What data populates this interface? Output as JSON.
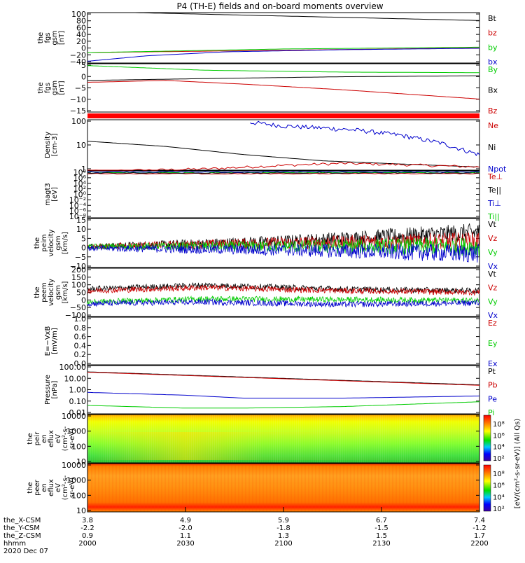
{
  "title": "P4 (TH-E) fields and on-board moments overview",
  "time_axis": {
    "rows": [
      {
        "label": "the_X-CSM",
        "values": [
          "3.8",
          "4.9",
          "5.9",
          "6.7",
          "7.4"
        ]
      },
      {
        "label": "the_Y-CSM",
        "values": [
          "-2.2",
          "-2.0",
          "-1.8",
          "-1.5",
          "-1.2"
        ]
      },
      {
        "label": "the_Z-CSM",
        "values": [
          "0.9",
          "1.1",
          "1.3",
          "1.5",
          "1.7"
        ]
      },
      {
        "label": "hhmm",
        "values": [
          "2000",
          "2030",
          "2100",
          "2130",
          "2200"
        ]
      }
    ],
    "date": "2020 Dec 07"
  },
  "colorbar_label": "[eV/(cm²-s-sr-eV)] (All Qs)",
  "colorbar_ticks": [
    "10⁸",
    "10⁶",
    "10⁴",
    "10²"
  ],
  "colors": {
    "black": "#000000",
    "red": "#cc0000",
    "green": "#00cc00",
    "blue": "#0000cc"
  },
  "chart_data": [
    {
      "type": "line",
      "ylabel": [
        "the",
        "fgs",
        "gsm",
        "[nT]"
      ],
      "ytick_labels": [
        "100",
        "80",
        "60",
        "40",
        "20",
        "0",
        "−20",
        "−40"
      ],
      "legend": [
        "Bt",
        "bz",
        "by",
        "bx"
      ],
      "series": [
        {
          "name": "Bt",
          "color": "black",
          "x": [
            2000,
            2200
          ],
          "y": [
            103,
            78
          ]
        },
        {
          "name": "bz",
          "color": "red",
          "x": [
            2000,
            2200
          ],
          "y": [
            -11,
            2
          ]
        },
        {
          "name": "by",
          "color": "green",
          "x": [
            2000,
            2100,
            2200
          ],
          "y": [
            -11,
            -1,
            4
          ]
        },
        {
          "name": "bx",
          "color": "blue",
          "x": [
            2000,
            2030,
            2070,
            2130,
            2200
          ],
          "y": [
            -35,
            -20,
            -9,
            -3,
            1
          ]
        }
      ]
    },
    {
      "type": "line",
      "ylabel": [
        "the",
        "fgs",
        "gsm",
        "[nT]"
      ],
      "ytick_labels": [
        "5",
        "0",
        "−5",
        "−10",
        "−15"
      ],
      "legend": [
        "By",
        "Bx",
        "Bz"
      ],
      "series": [
        {
          "name": "By",
          "color": "green",
          "x": [
            2000,
            2060,
            2130,
            2200
          ],
          "y": [
            7,
            4.5,
            3.5,
            3.2
          ]
        },
        {
          "name": "Bx",
          "color": "black",
          "x": [
            2000,
            2060,
            2130,
            2200
          ],
          "y": [
            -1,
            0,
            1,
            1.5
          ]
        },
        {
          "name": "Bz",
          "color": "red",
          "x": [
            2000,
            2040,
            2080,
            2130,
            2200
          ],
          "y": [
            -2,
            -1,
            -3,
            -6,
            -11
          ]
        }
      ]
    },
    {
      "type": "line",
      "ylabel": [
        "Density",
        "[cm-3]"
      ],
      "ytick_labels": [
        "100",
        "10",
        "1"
      ],
      "legend": [
        "Ne",
        "Ni",
        "Npot"
      ],
      "series": [
        {
          "name": "Ni",
          "color": "black",
          "x": [
            2000,
            2040,
            2080,
            2120,
            2160,
            2200
          ],
          "y": [
            18,
            10,
            4,
            2,
            1.4,
            1.0
          ]
        },
        {
          "name": "Ne",
          "color": "red",
          "x": [
            2000,
            2060,
            2100,
            2130,
            2160,
            2200
          ],
          "y": [
            0.6,
            0.8,
            1.2,
            1.5,
            1.3,
            1.0
          ]
        },
        {
          "name": "Npot",
          "color": "blue",
          "x": [
            2083,
            2100,
            2120,
            2140,
            2160,
            2180,
            2200
          ],
          "y": [
            150,
            100,
            80,
            60,
            35,
            15,
            4
          ]
        }
      ]
    },
    {
      "type": "line",
      "ylabel": [
        "magt3",
        "[eV]"
      ],
      "ytick_labels": [
        "10⁸",
        "10⁶",
        "10⁴",
        "10²",
        "10⁰",
        "10⁻²",
        "10⁻⁴",
        "10⁻⁶",
        "10⁻⁸"
      ],
      "legend": [
        "Te⊥",
        "Te||",
        "Ti⊥",
        "Ti||"
      ]
    },
    {
      "type": "line",
      "ylabel": [
        "the",
        "peim",
        "velocity",
        "gsm",
        "[km/s]"
      ],
      "ytick_labels": [
        "15",
        "10",
        "5",
        "0",
        "−5",
        "−10"
      ],
      "legend": [
        "Vt",
        "Vz",
        "Vy",
        "Vx"
      ],
      "series": [
        {
          "name": "Vt",
          "color": "black",
          "x": [
            2000,
            2100,
            2200
          ],
          "y": [
            0,
            3,
            8
          ]
        },
        {
          "name": "Vz",
          "color": "red",
          "x": [
            2000,
            2100,
            2200
          ],
          "y": [
            0,
            2,
            3
          ]
        },
        {
          "name": "Vy",
          "color": "green",
          "x": [
            2000,
            2200
          ],
          "y": [
            0,
            0
          ]
        },
        {
          "name": "Vx",
          "color": "blue",
          "x": [
            2000,
            2100,
            2200
          ],
          "y": [
            -1,
            -2,
            -4
          ]
        }
      ]
    },
    {
      "type": "line",
      "ylabel": [
        "the",
        "peem",
        "velocity",
        "gsm",
        "[km/s]"
      ],
      "ytick_labels": [
        "200",
        "150",
        "100",
        "50",
        "0",
        "−50",
        "−100"
      ],
      "legend": [
        "Vt",
        "Vz",
        "Vy",
        "Vx"
      ],
      "series": [
        {
          "name": "Vt",
          "color": "black",
          "x": [
            2000,
            2060,
            2130,
            2200
          ],
          "y": [
            70,
            95,
            70,
            60
          ]
        },
        {
          "name": "Vz",
          "color": "red",
          "x": [
            2000,
            2060,
            2130,
            2200
          ],
          "y": [
            60,
            80,
            60,
            50
          ]
        },
        {
          "name": "Vy",
          "color": "green",
          "x": [
            2000,
            2060,
            2130,
            2200
          ],
          "y": [
            -10,
            10,
            5,
            0
          ]
        },
        {
          "name": "Vx",
          "color": "blue",
          "x": [
            2000,
            2060,
            2130,
            2200
          ],
          "y": [
            -20,
            -10,
            -25,
            -15
          ]
        }
      ]
    },
    {
      "type": "line",
      "ylabel": [
        "E=−VxB",
        "[mV/m]"
      ],
      "ytick_labels": [
        "1.0",
        "0.8",
        "0.6",
        "0.4",
        "0.2",
        "0.0"
      ],
      "legend": [
        "Ez",
        "Ey",
        "Ex"
      ]
    },
    {
      "type": "line",
      "ylabel": [
        "Pressure",
        "[nPa]"
      ],
      "ytick_labels": [
        "100.00",
        "10.00",
        "1.00",
        "0.10",
        "0.01"
      ],
      "legend": [
        "Pt",
        "Pb",
        "Pe",
        "Pi"
      ],
      "series": [
        {
          "name": "Pt",
          "color": "black",
          "x": [
            2000,
            2200
          ],
          "y": [
            30,
            2.5
          ]
        },
        {
          "name": "Pb",
          "color": "red",
          "x": [
            2000,
            2200
          ],
          "y": [
            28,
            2.3
          ]
        },
        {
          "name": "Pe",
          "color": "blue",
          "x": [
            2000,
            2050,
            2080,
            2130,
            2200
          ],
          "y": [
            0.6,
            0.35,
            0.2,
            0.2,
            0.3
          ]
        },
        {
          "name": "Pi",
          "color": "green",
          "x": [
            2000,
            2050,
            2080,
            2130,
            2200
          ],
          "y": [
            0.05,
            0.03,
            0.03,
            0.04,
            0.1
          ]
        }
      ]
    },
    {
      "type": "heatmap",
      "ylabel": [
        "the",
        "peir",
        "en",
        "eflux",
        "eV",
        "(cm²-s-",
        "sr-eV)"
      ],
      "ytick_labels": [
        "10000",
        "1000",
        "100",
        "10"
      ]
    },
    {
      "type": "heatmap",
      "ylabel": [
        "the",
        "peer",
        "en",
        "eflux",
        "eV",
        "(cm²-s-",
        "sr-eV)"
      ],
      "ytick_labels": [
        "10000",
        "1000",
        "100",
        "10"
      ]
    }
  ]
}
